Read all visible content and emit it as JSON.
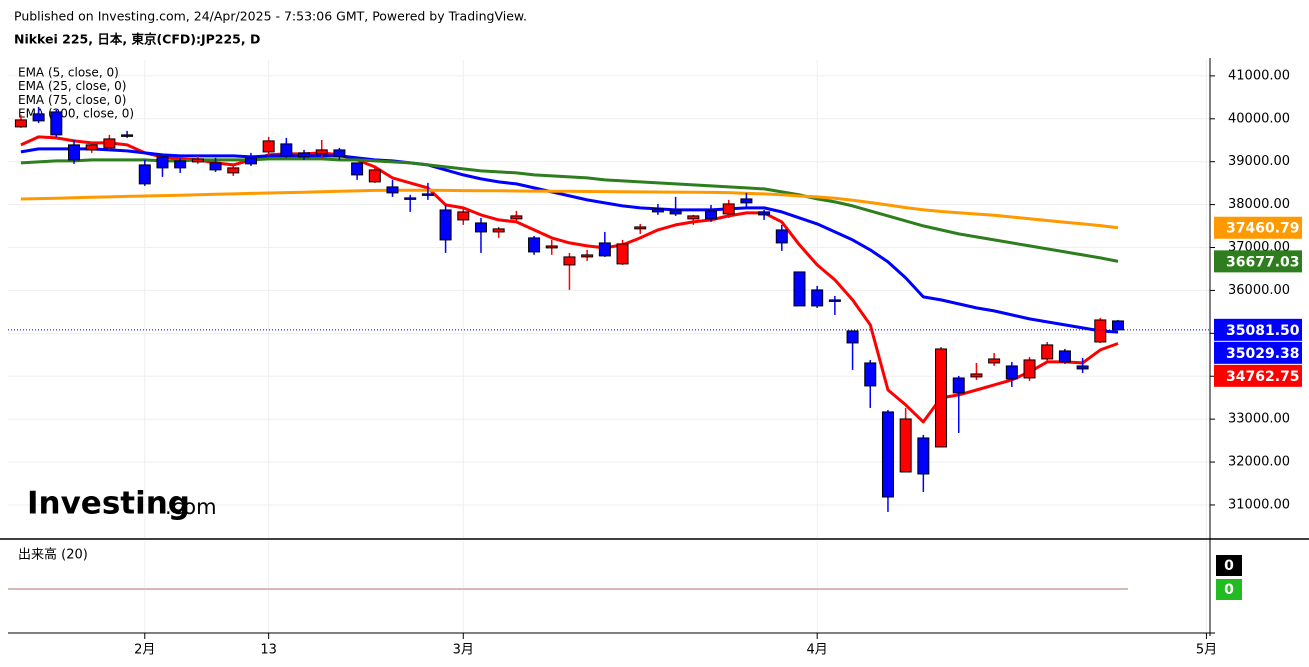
{
  "chart_data": {
    "type": "candlestick",
    "subtitle": "Published on Investing.com, 24/Apr/2025 - 7:53:06 GMT, Powered by TradingView.",
    "title": "Nikkei 225, 日本, 東京(CFD):JP225, D",
    "watermark": [
      "Investing",
      ".com"
    ],
    "up_color": "#ff0000",
    "down_color": "#0000ff",
    "grid": true,
    "open": [
      39811,
      40114,
      40160,
      39392,
      39275,
      39322,
      39625,
      38925,
      39112,
      39018,
      38995,
      38972,
      38739,
      39089,
      39228,
      39415,
      39205,
      39182,
      39275,
      38972,
      38529,
      38413,
      38157,
      38250,
      37876,
      37643,
      37573,
      37363,
      37667,
      37224,
      36991,
      36594,
      36781,
      37107,
      36618,
      37434,
      37900,
      37876,
      37667,
      37853,
      37783,
      38133,
      37830,
      37410,
      36431,
      36012,
      35779,
      35056,
      34310,
      33168,
      31769,
      32562,
      32352,
      33960,
      33984,
      34310,
      34240,
      33960,
      34403,
      34590,
      34240,
      34799,
      35289
    ],
    "high": [
      40090,
      40277,
      40207,
      39508,
      39392,
      39625,
      39718,
      39042,
      39158,
      39089,
      39135,
      39089,
      38925,
      39205,
      39578,
      39555,
      39275,
      39508,
      39322,
      38972,
      38856,
      38576,
      38227,
      38506,
      37993,
      37923,
      37690,
      37480,
      37853,
      37270,
      37177,
      36874,
      36944,
      37363,
      37177,
      37550,
      38016,
      38180,
      37760,
      37993,
      38110,
      38273,
      37876,
      37527,
      36431,
      36105,
      35872,
      35056,
      34380,
      33214,
      33261,
      32632,
      34683,
      34007,
      34310,
      34543,
      34333,
      34450,
      34799,
      34636,
      34427,
      35359,
      35312
    ],
    "low": [
      39790,
      39904,
      39578,
      38949,
      39205,
      39275,
      39555,
      38436,
      38646,
      38739,
      38949,
      38762,
      38669,
      38902,
      39158,
      39089,
      39042,
      39065,
      39042,
      38576,
      38506,
      38180,
      37830,
      38110,
      36874,
      37527,
      36874,
      37224,
      37574,
      36828,
      36828,
      36012,
      36688,
      36781,
      36594,
      37317,
      37760,
      37737,
      37527,
      37597,
      37690,
      37900,
      37643,
      36921,
      35639,
      35592,
      35429,
      34147,
      33261,
      30837,
      31769,
      31303,
      32352,
      32678,
      33914,
      34240,
      33750,
      33891,
      34356,
      34287,
      34077,
      34776,
      35079
    ],
    "close": [
      39974,
      39951,
      39625,
      39042,
      39392,
      39531,
      39620,
      38483,
      38856,
      38856,
      39065,
      38809,
      38856,
      38949,
      39485,
      39135,
      39112,
      39275,
      39112,
      38692,
      38809,
      38273,
      38150,
      38245,
      37177,
      37830,
      37363,
      37434,
      37737,
      36897,
      37037,
      36781,
      36828,
      36804,
      37084,
      37480,
      37830,
      37783,
      37737,
      37667,
      38016,
      38040,
      37760,
      37107,
      35639,
      35639,
      35760,
      34776,
      33774,
      31186,
      33005,
      31722,
      34636,
      33611,
      34054,
      34403,
      33937,
      34380,
      34730,
      34333,
      34170,
      35312,
      35081.5
    ],
    "last_price": {
      "value": 35081.5,
      "label": "35081.50"
    },
    "series": [
      {
        "name": "EMA (5, close, 0)",
        "color": "#ff0000",
        "values": [
          39392,
          39578,
          39555,
          39485,
          39438,
          39438,
          39392,
          39205,
          39112,
          39065,
          39042,
          38972,
          38925,
          39042,
          39158,
          39182,
          39182,
          39205,
          39158,
          39042,
          38879,
          38622,
          38506,
          38389,
          37993,
          37923,
          37760,
          37643,
          37597,
          37410,
          37224,
          37107,
          37037,
          36991,
          37061,
          37224,
          37410,
          37527,
          37597,
          37643,
          37737,
          37807,
          37807,
          37597,
          37061,
          36594,
          36244,
          35779,
          35196,
          33680,
          33331,
          32935,
          33494,
          33564,
          33680,
          33797,
          33914,
          34100,
          34333,
          34333,
          34310,
          34613,
          34762.75
        ]
      },
      {
        "name": "EMA (25, close, 0)",
        "color": "#0000ff",
        "values": [
          39228,
          39298,
          39298,
          39298,
          39298,
          39275,
          39252,
          39205,
          39158,
          39135,
          39135,
          39135,
          39135,
          39112,
          39135,
          39135,
          39135,
          39135,
          39135,
          39089,
          39042,
          39018,
          38972,
          38925,
          38809,
          38692,
          38599,
          38529,
          38483,
          38389,
          38296,
          38203,
          38110,
          38040,
          37970,
          37923,
          37900,
          37876,
          37876,
          37876,
          37900,
          37923,
          37923,
          37830,
          37690,
          37550,
          37364,
          37177,
          36944,
          36664,
          36291,
          35849,
          35779,
          35685,
          35592,
          35522,
          35429,
          35336,
          35266,
          35196,
          35126,
          35056,
          35029.38
        ]
      },
      {
        "name": "EMA (75, close, 0)",
        "color": "#2e7d1e",
        "values": [
          38972,
          38995,
          39018,
          39018,
          39042,
          39042,
          39042,
          39042,
          39018,
          39018,
          39042,
          39042,
          39042,
          39042,
          39065,
          39065,
          39065,
          39065,
          39042,
          39042,
          39018,
          38995,
          38972,
          38925,
          38879,
          38832,
          38786,
          38762,
          38739,
          38692,
          38669,
          38646,
          38622,
          38576,
          38553,
          38529,
          38506,
          38483,
          38460,
          38436,
          38413,
          38389,
          38366,
          38296,
          38227,
          38133,
          38063,
          37970,
          37853,
          37737,
          37620,
          37503,
          37410,
          37317,
          37247,
          37177,
          37107,
          37037,
          36967,
          36897,
          36828,
          36758,
          36677.03
        ]
      },
      {
        "name": "EMA (200, close, 0)",
        "color": "#ff9900",
        "values": [
          38130,
          38140,
          38150,
          38160,
          38170,
          38180,
          38190,
          38200,
          38210,
          38220,
          38230,
          38240,
          38250,
          38260,
          38270,
          38280,
          38290,
          38300,
          38310,
          38320,
          38330,
          38335,
          38335,
          38333,
          38330,
          38327,
          38324,
          38321,
          38318,
          38315,
          38312,
          38309,
          38306,
          38303,
          38300,
          38297,
          38294,
          38291,
          38288,
          38285,
          38280,
          38260,
          38250,
          38230,
          38200,
          38180,
          38150,
          38100,
          38050,
          37990,
          37930,
          37880,
          37840,
          37810,
          37780,
          37750,
          37710,
          37670,
          37630,
          37590,
          37550,
          37510,
          37460.79
        ]
      }
    ],
    "xlim": [
      -0.73,
      67.2
    ],
    "xticks": [
      {
        "value": 7,
        "label": "2月"
      },
      {
        "value": 14,
        "label": "13"
      },
      {
        "value": 25,
        "label": "3月"
      },
      {
        "value": 45,
        "label": "4月"
      },
      {
        "value": 67,
        "label": "5月"
      }
    ],
    "ylim": [
      30230,
      41370
    ],
    "yticks": [
      {
        "value": 31000,
        "label": "31000.00"
      },
      {
        "value": 32000,
        "label": "32000.00"
      },
      {
        "value": 33000,
        "label": "33000.00"
      },
      {
        "value": 34000,
        "label": "34000.00"
      },
      {
        "value": 35000,
        "label": "35000.00"
      },
      {
        "value": 36000,
        "label": "36000.00"
      },
      {
        "value": 37000,
        "label": "37000.00"
      },
      {
        "value": 38000,
        "label": "38000.00"
      },
      {
        "value": 39000,
        "label": "39000.00"
      },
      {
        "value": 40000,
        "label": "40000.00"
      },
      {
        "value": 41000,
        "label": "41000.00"
      }
    ],
    "volume_panel": {
      "title": "出来高 (20)",
      "volume": 0,
      "volume_ma": 0,
      "volume_color": "#000000",
      "ma_color": "#22bb22"
    }
  }
}
